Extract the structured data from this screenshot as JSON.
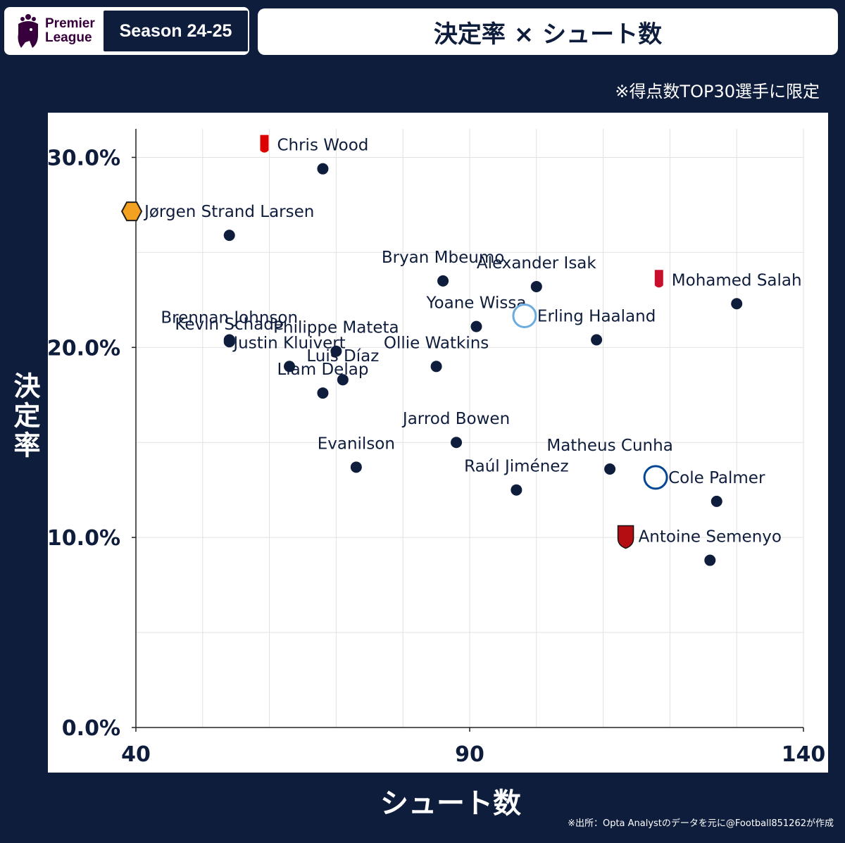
{
  "header": {
    "league_line1": "Premier",
    "league_line2": "League",
    "season": "Season 24-25",
    "title": "決定率 × シュート数"
  },
  "note": "※得点数TOP30選手に限定",
  "source": "※出所：Opta Analystのデータを元に@Football851262が作成",
  "colors": {
    "background": "#0f1d3d",
    "point": "#0f1d3d",
    "panel": "#ffffff",
    "grid": "#e2e2e2",
    "premier_league_purple": "#37003c"
  },
  "chart_data": {
    "type": "scatter",
    "title": "決定率 × シュート数",
    "xlabel": "シュート数",
    "ylabel": "決定率",
    "xlim": [
      40,
      140
    ],
    "ylim": [
      0,
      31.5
    ],
    "x_ticks": [
      "40",
      "90",
      "140"
    ],
    "y_ticks": [
      "0.0%",
      "10.0%",
      "20.0%",
      "30.0%"
    ],
    "grid": true,
    "points": [
      {
        "name": "Chris Wood",
        "x": 68,
        "y": 29.4,
        "badge": "nottingham-forest-icon"
      },
      {
        "name": "Jørgen Strand Larsen",
        "x": 54,
        "y": 25.9,
        "badge": "wolves-icon"
      },
      {
        "name": "Bryan Mbeumo",
        "x": 86,
        "y": 23.5
      },
      {
        "name": "Alexander Isak",
        "x": 100,
        "y": 23.2
      },
      {
        "name": "Mohamed Salah",
        "x": 130,
        "y": 22.3,
        "badge": "liverpool-icon"
      },
      {
        "name": "Yoane Wissa",
        "x": 91,
        "y": 21.1
      },
      {
        "name": "Erling Haaland",
        "x": 109,
        "y": 20.4,
        "badge": "manchester-city-icon"
      },
      {
        "name": "Brennan Johnson",
        "x": 54,
        "y": 20.4
      },
      {
        "name": "Kevin Schade",
        "x": 54,
        "y": 20.3
      },
      {
        "name": "Philippe Mateta",
        "x": 70,
        "y": 19.8
      },
      {
        "name": "Justin Kluivert",
        "x": 63,
        "y": 19.0
      },
      {
        "name": "Ollie Watkins",
        "x": 85,
        "y": 19.0
      },
      {
        "name": "Luis Díaz",
        "x": 71,
        "y": 18.3
      },
      {
        "name": "Liam Delap",
        "x": 68,
        "y": 17.6
      },
      {
        "name": "Jarrod Bowen",
        "x": 88,
        "y": 15.0
      },
      {
        "name": "Evanilson",
        "x": 73,
        "y": 13.7
      },
      {
        "name": "Matheus Cunha",
        "x": 111,
        "y": 13.6
      },
      {
        "name": "Raúl Jiménez",
        "x": 97,
        "y": 12.5
      },
      {
        "name": "Cole Palmer",
        "x": 127,
        "y": 11.9,
        "badge": "chelsea-icon"
      },
      {
        "name": "Antoine Semenyo",
        "x": 126,
        "y": 8.8,
        "badge": "bournemouth-icon"
      }
    ]
  }
}
